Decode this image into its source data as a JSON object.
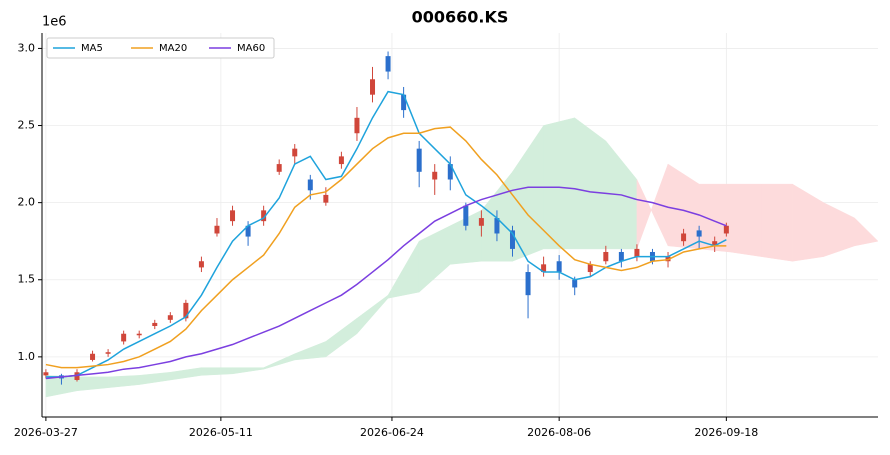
{
  "chart_data": {
    "type": "candlestick",
    "title": "000660.KS",
    "offset_text": "1e6",
    "x": [
      "2026-03-27",
      "2026-03-31",
      "2026-04-04",
      "2026-04-08",
      "2026-04-12",
      "2026-04-16",
      "2026-04-20",
      "2026-04-24",
      "2026-04-28",
      "2026-05-02",
      "2026-05-06",
      "2026-05-10",
      "2026-05-14",
      "2026-05-18",
      "2026-05-22",
      "2026-05-26",
      "2026-05-30",
      "2026-06-03",
      "2026-06-07",
      "2026-06-11",
      "2026-06-15",
      "2026-06-19",
      "2026-06-23",
      "2026-06-27",
      "2026-07-01",
      "2026-07-05",
      "2026-07-09",
      "2026-07-13",
      "2026-07-17",
      "2026-07-21",
      "2026-07-25",
      "2026-07-29",
      "2026-08-02",
      "2026-08-06",
      "2026-08-10",
      "2026-08-14",
      "2026-08-18",
      "2026-08-22",
      "2026-08-26",
      "2026-08-30",
      "2026-09-03",
      "2026-09-07",
      "2026-09-11",
      "2026-09-15",
      "2026-09-18"
    ],
    "open": [
      0.88,
      0.88,
      0.85,
      0.98,
      1.02,
      1.1,
      1.14,
      1.2,
      1.24,
      1.25,
      1.58,
      1.8,
      1.88,
      1.85,
      1.88,
      2.2,
      2.3,
      2.15,
      2.0,
      2.25,
      2.45,
      2.7,
      2.95,
      2.7,
      2.35,
      2.15,
      2.25,
      1.98,
      1.85,
      1.9,
      1.82,
      1.55,
      1.55,
      1.62,
      1.5,
      1.55,
      1.62,
      1.68,
      1.65,
      1.68,
      1.62,
      1.75,
      1.82,
      1.72,
      1.8
    ],
    "high": [
      0.92,
      0.89,
      0.92,
      1.04,
      1.05,
      1.17,
      1.17,
      1.24,
      1.29,
      1.37,
      1.65,
      1.9,
      1.98,
      1.88,
      1.98,
      2.28,
      2.38,
      2.18,
      2.1,
      2.33,
      2.62,
      2.88,
      2.98,
      2.75,
      2.4,
      2.25,
      2.3,
      2.0,
      1.95,
      1.95,
      1.85,
      1.6,
      1.65,
      1.66,
      1.52,
      1.62,
      1.72,
      1.7,
      1.73,
      1.7,
      1.68,
      1.83,
      1.85,
      1.78,
      1.87
    ],
    "low": [
      0.86,
      0.82,
      0.84,
      0.97,
      1.0,
      1.08,
      1.12,
      1.18,
      1.22,
      1.23,
      1.55,
      1.78,
      1.85,
      1.72,
      1.85,
      2.18,
      2.25,
      2.02,
      1.98,
      2.22,
      2.4,
      2.65,
      2.8,
      2.55,
      2.1,
      2.05,
      2.08,
      1.82,
      1.78,
      1.75,
      1.65,
      1.25,
      1.52,
      1.5,
      1.4,
      1.52,
      1.6,
      1.58,
      1.62,
      1.6,
      1.58,
      1.72,
      1.7,
      1.68,
      1.78
    ],
    "close": [
      0.9,
      0.86,
      0.9,
      1.02,
      1.03,
      1.15,
      1.15,
      1.22,
      1.27,
      1.35,
      1.62,
      1.85,
      1.95,
      1.78,
      1.95,
      2.25,
      2.35,
      2.08,
      2.05,
      2.3,
      2.55,
      2.8,
      2.85,
      2.6,
      2.2,
      2.2,
      2.15,
      1.85,
      1.9,
      1.8,
      1.7,
      1.4,
      1.6,
      1.55,
      1.45,
      1.6,
      1.68,
      1.62,
      1.7,
      1.62,
      1.65,
      1.8,
      1.78,
      1.75,
      1.85
    ],
    "up_color": "#d0463a",
    "down_color": "#2b6fcc",
    "series": [
      {
        "name": "MA5",
        "color": "#1fa3dc",
        "values": [
          0.87,
          0.87,
          0.88,
          0.93,
          0.98,
          1.05,
          1.1,
          1.15,
          1.2,
          1.26,
          1.4,
          1.58,
          1.75,
          1.85,
          1.9,
          2.03,
          2.25,
          2.3,
          2.15,
          2.17,
          2.35,
          2.55,
          2.72,
          2.7,
          2.45,
          2.35,
          2.25,
          2.05,
          1.98,
          1.9,
          1.8,
          1.62,
          1.55,
          1.55,
          1.5,
          1.52,
          1.58,
          1.62,
          1.65,
          1.65,
          1.65,
          1.7,
          1.75,
          1.72,
          1.76
        ]
      },
      {
        "name": "MA20",
        "color": "#f0a020",
        "values": [
          0.95,
          0.93,
          0.93,
          0.94,
          0.95,
          0.97,
          1.0,
          1.05,
          1.1,
          1.18,
          1.3,
          1.4,
          1.5,
          1.58,
          1.66,
          1.8,
          1.97,
          2.05,
          2.07,
          2.15,
          2.25,
          2.35,
          2.42,
          2.45,
          2.45,
          2.48,
          2.49,
          2.4,
          2.28,
          2.18,
          2.05,
          1.92,
          1.82,
          1.72,
          1.63,
          1.6,
          1.58,
          1.56,
          1.58,
          1.62,
          1.63,
          1.68,
          1.7,
          1.72,
          1.72
        ]
      },
      {
        "name": "MA60",
        "color": "#7b3fe0",
        "values": [
          0.86,
          0.87,
          0.88,
          0.89,
          0.9,
          0.92,
          0.93,
          0.95,
          0.97,
          1.0,
          1.02,
          1.05,
          1.08,
          1.12,
          1.16,
          1.2,
          1.25,
          1.3,
          1.35,
          1.4,
          1.47,
          1.55,
          1.63,
          1.72,
          1.8,
          1.88,
          1.93,
          1.98,
          2.02,
          2.05,
          2.08,
          2.1,
          2.1,
          2.1,
          2.09,
          2.07,
          2.06,
          2.05,
          2.02,
          2.0,
          1.97,
          1.95,
          1.92,
          1.88,
          1.85
        ]
      }
    ],
    "cloud": {
      "x": [
        "2026-03-27",
        "2026-04-04",
        "2026-04-12",
        "2026-04-20",
        "2026-04-28",
        "2026-05-06",
        "2026-05-14",
        "2026-05-22",
        "2026-05-30",
        "2026-06-07",
        "2026-06-15",
        "2026-06-23",
        "2026-07-01",
        "2026-07-09",
        "2026-07-17",
        "2026-07-25",
        "2026-08-02",
        "2026-08-10",
        "2026-08-18",
        "2026-08-26",
        "2026-09-03",
        "2026-09-11",
        "2026-09-19",
        "2026-09-27",
        "2026-10-05",
        "2026-10-13",
        "2026-10-21",
        "2026-10-27"
      ],
      "span_a": [
        0.88,
        0.87,
        0.87,
        0.88,
        0.9,
        0.93,
        0.93,
        0.93,
        1.02,
        1.1,
        1.25,
        1.4,
        1.75,
        1.85,
        1.95,
        2.2,
        2.5,
        2.55,
        2.4,
        2.15,
        1.72,
        1.7,
        1.68,
        1.65,
        1.62,
        1.65,
        1.72,
        1.75
      ],
      "span_b": [
        0.74,
        0.78,
        0.8,
        0.82,
        0.85,
        0.88,
        0.89,
        0.92,
        0.98,
        1.0,
        1.15,
        1.38,
        1.42,
        1.6,
        1.62,
        1.62,
        1.7,
        1.7,
        1.7,
        1.7,
        2.25,
        2.12,
        2.12,
        2.12,
        2.12,
        2.0,
        1.9,
        1.75
      ],
      "colors": [
        "#d3eedc",
        "#fddbdc"
      ]
    },
    "xlim": [
      "2026-03-26",
      "2026-10-27"
    ],
    "xticks": [
      "2026-03-27",
      "2026-05-11",
      "2026-06-24",
      "2026-08-06",
      "2026-09-18"
    ],
    "ylim": [
      0.61,
      3.1
    ],
    "yticks": [
      {
        "value": 1,
        "label": "1.0"
      },
      {
        "value": 1.5,
        "label": "1.5"
      },
      {
        "value": 2,
        "label": "2.0"
      },
      {
        "value": 2.5,
        "label": "2.5"
      },
      {
        "value": 3,
        "label": "3.0"
      }
    ],
    "grid": true,
    "legend": "upper left"
  }
}
